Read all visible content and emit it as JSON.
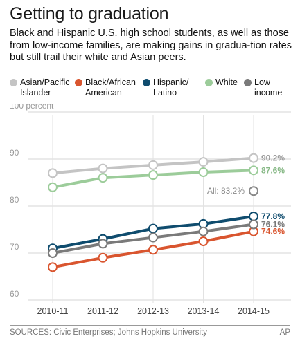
{
  "header": {
    "title": "Getting to graduation",
    "subtitle": "Black and Hispanic U.S. high school students, as well as those from low-income families, are making gains in gradua-tion rates but still trail their white and Asian peers."
  },
  "footer": {
    "source": "SOURCES: Civic Enterprises; Johns Hopkins University",
    "credit": "AP"
  },
  "chart_data": {
    "type": "line",
    "categories": [
      "2010-11",
      "2011-12",
      "2012-13",
      "2013-14",
      "2014-15"
    ],
    "ylim": [
      60,
      100
    ],
    "yticks": [
      60,
      70,
      80,
      90,
      100
    ],
    "ytick_labels": [
      "60",
      "70",
      "80",
      "90",
      "100 percent"
    ],
    "grid": true,
    "legend_position": "top",
    "series": [
      {
        "name": "Asian/Pacific Islander",
        "legend_lines": [
          "Asian/Pacific",
          "Islander"
        ],
        "color": "#c4c4c4",
        "label_color": "#9a9a9a",
        "values": [
          87.0,
          88.0,
          88.7,
          89.4,
          90.2
        ],
        "end_label": "90.2%"
      },
      {
        "name": "Black/African American",
        "legend_lines": [
          "Black/African",
          "American"
        ],
        "color": "#d9552f",
        "label_color": "#d9552f",
        "values": [
          67.0,
          69.0,
          70.7,
          72.5,
          74.6
        ],
        "end_label": "74.6%"
      },
      {
        "name": "Hispanic/Latino",
        "legend_lines": [
          "Hispanic/",
          "Latino"
        ],
        "color": "#0f4c6e",
        "label_color": "#0f4c6e",
        "values": [
          71.0,
          73.0,
          75.2,
          76.2,
          77.8
        ],
        "end_label": "77.8%"
      },
      {
        "name": "White",
        "legend_lines": [
          "White"
        ],
        "color": "#9ccc9a",
        "label_color": "#86b885",
        "values": [
          84.0,
          86.0,
          86.6,
          87.2,
          87.6
        ],
        "end_label": "87.6%"
      },
      {
        "name": "Low income",
        "legend_lines": [
          "Low income"
        ],
        "color": "#7a7a7a",
        "label_color": "#7a7a7a",
        "values": [
          70.0,
          72.0,
          73.3,
          74.6,
          76.1
        ],
        "end_label": "76.1%"
      }
    ],
    "annotations": [
      {
        "text": "All: 83.2%",
        "x": "2014-15",
        "y": 83.2,
        "color": "#888888"
      }
    ]
  }
}
